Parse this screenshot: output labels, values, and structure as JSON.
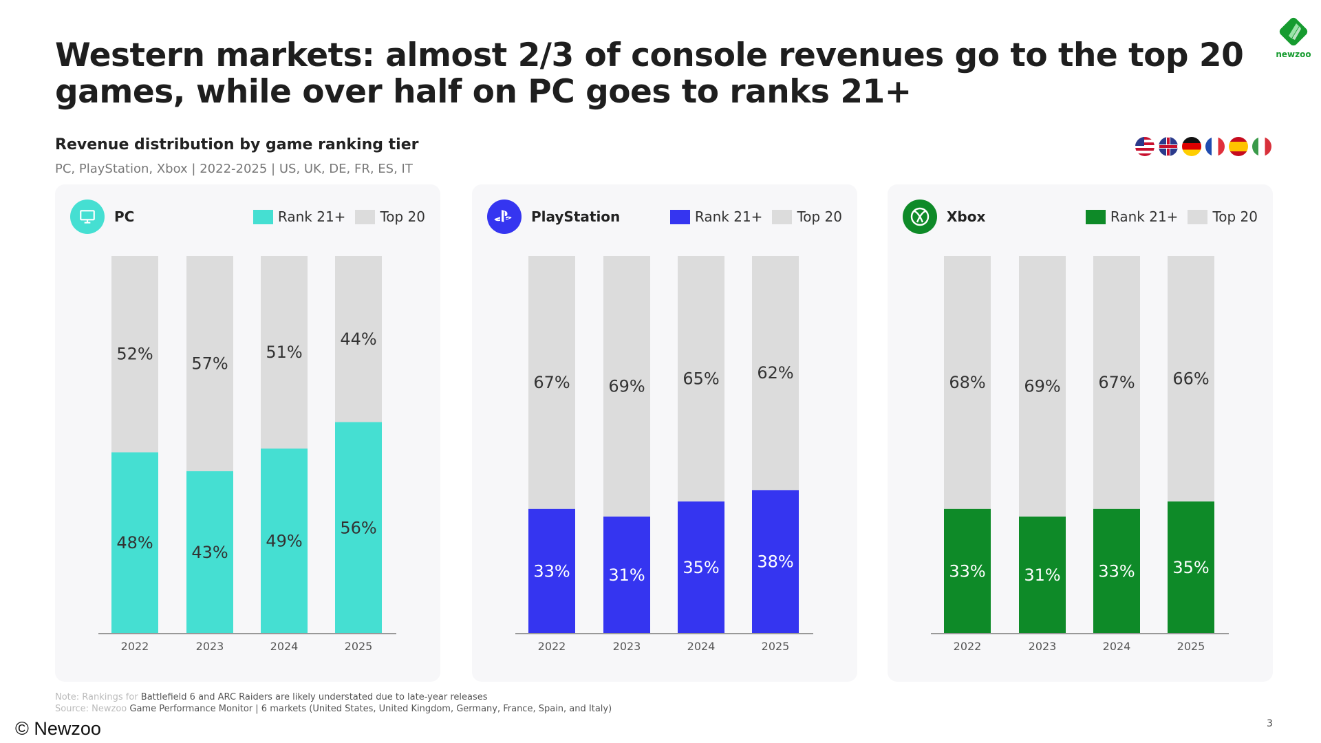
{
  "title": "Western markets: almost 2/3 of console revenues go to the top 20 games, while over half on PC goes to ranks 21+",
  "logo_text": "newzoo",
  "subtitle": "Revenue distribution by game ranking tier",
  "subsubtitle": "PC, PlayStation, Xbox | 2022-2025 | US, UK, DE, FR, ES, IT",
  "flags": [
    "us-flag-icon",
    "uk-flag-icon",
    "de-flag-icon",
    "fr-flag-icon",
    "es-flag-icon",
    "it-flag-icon"
  ],
  "colors": {
    "pc": "#45dfd2",
    "playstation": "#3535f0",
    "xbox": "#0e8a28",
    "top20": "#dcdcdc"
  },
  "chart_data": [
    {
      "type": "bar",
      "stacked": true,
      "title": "PC",
      "icon": "monitor-icon",
      "categories": [
        "2022",
        "2023",
        "2024",
        "2025"
      ],
      "ylim": [
        0,
        100
      ],
      "series": [
        {
          "name": "Rank 21+",
          "values": [
            48,
            43,
            49,
            56
          ]
        },
        {
          "name": "Top 20",
          "values": [
            52,
            57,
            51,
            44
          ]
        }
      ],
      "legend": "top-right"
    },
    {
      "type": "bar",
      "stacked": true,
      "title": "PlayStation",
      "icon": "playstation-icon",
      "categories": [
        "2022",
        "2023",
        "2024",
        "2025"
      ],
      "ylim": [
        0,
        100
      ],
      "series": [
        {
          "name": "Rank 21+",
          "values": [
            33,
            31,
            35,
            38
          ]
        },
        {
          "name": "Top 20",
          "values": [
            67,
            69,
            65,
            62
          ]
        }
      ],
      "legend": "top-right"
    },
    {
      "type": "bar",
      "stacked": true,
      "title": "Xbox",
      "icon": "xbox-icon",
      "categories": [
        "2022",
        "2023",
        "2024",
        "2025"
      ],
      "ylim": [
        0,
        100
      ],
      "series": [
        {
          "name": "Rank 21+",
          "values": [
            33,
            31,
            33,
            35
          ]
        },
        {
          "name": "Top 20",
          "values": [
            68,
            69,
            67,
            66
          ]
        }
      ],
      "legend": "top-right"
    }
  ],
  "footer": {
    "note_faint": "Note: Rankings for ",
    "note": "Battlefield 6 and ARC Raiders are likely understated due to late-year releases",
    "source_faint": "Source: Newzoo ",
    "source": "Game Performance Monitor | 6 markets (United States, United Kingdom, Germany, France, Spain, and Italy)",
    "copyright": "© Newzoo",
    "page": "3"
  }
}
